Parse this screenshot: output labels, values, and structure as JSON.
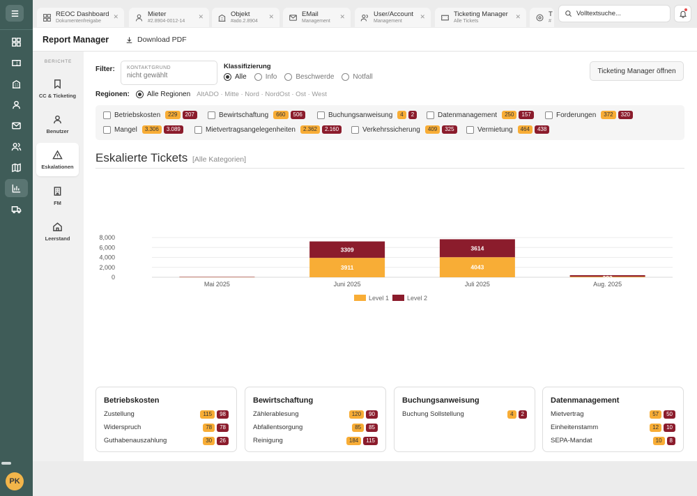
{
  "rail": {
    "avatar": "PK",
    "icons": [
      "menu-icon",
      "dashboard-icon",
      "ticket-icon",
      "building-icon",
      "user-icon",
      "mail-icon",
      "users-icon",
      "map-icon",
      "chart-icon",
      "truck-icon"
    ]
  },
  "tabs": [
    {
      "title": "REOC Dashboard",
      "subtitle": "Dokumentenfreigabe",
      "icon": "dashboard-icon"
    },
    {
      "title": "Mieter",
      "subtitle": "#2.8904-0012-14",
      "icon": "user-icon"
    },
    {
      "title": "Objekt",
      "subtitle": "#ado.2.8904",
      "icon": "building-icon"
    },
    {
      "title": "EMail",
      "subtitle": "Management",
      "icon": "mail-icon"
    },
    {
      "title": "User/Account",
      "subtitle": "Management",
      "icon": "users-icon"
    },
    {
      "title": "Ticketing Manager",
      "subtitle": "Alle Tickets",
      "icon": "ticket-icon"
    },
    {
      "title": "T",
      "subtitle": "#",
      "icon": "settings-icon"
    }
  ],
  "search": {
    "placeholder": "Volltextsuche..."
  },
  "header": {
    "title": "Report Manager",
    "pdf_label": "Download PDF"
  },
  "subnav": {
    "caption": "BERICHTE",
    "items": [
      {
        "label": "CC & Ticketing",
        "icon": "bookmark-icon"
      },
      {
        "label": "Benutzer",
        "icon": "user-icon"
      },
      {
        "label": "Eskalationen",
        "icon": "warning-icon"
      },
      {
        "label": "FM",
        "icon": "building-icon"
      },
      {
        "label": "Leerstand",
        "icon": "home-icon"
      }
    ]
  },
  "filter": {
    "label": "Filter:",
    "field_label": "KONTAKTGRUND",
    "field_value": "nicht gewählt",
    "klass_label": "Klassifizierung",
    "klass_options": [
      "Alle",
      "Info",
      "Beschwerde",
      "Notfall"
    ],
    "button": "Ticketing Manager öffnen",
    "regions_label": "Regionen:",
    "regions_selected": "Alle Regionen",
    "regions_other": "AltADO · Mitte · Nord · NordOst · Ost · West"
  },
  "categories": [
    {
      "name": "Betriebskosten",
      "l1": "229",
      "l2": "207"
    },
    {
      "name": "Bewirtschaftung",
      "l1": "660",
      "l2": "506"
    },
    {
      "name": "Buchungsanweisung",
      "l1": "4",
      "l2": "2"
    },
    {
      "name": "Datenmanagement",
      "l1": "250",
      "l2": "157"
    },
    {
      "name": "Forderungen",
      "l1": "372",
      "l2": "320"
    },
    {
      "name": "Mangel",
      "l1": "3.306",
      "l2": "3.089"
    },
    {
      "name": "Mietvertragsangelegenheiten",
      "l1": "2.362",
      "l2": "2.160"
    },
    {
      "name": "Verkehrssicherung",
      "l1": "409",
      "l2": "325"
    },
    {
      "name": "Vermietung",
      "l1": "464",
      "l2": "438"
    }
  ],
  "section": {
    "title": "Eskalierte Tickets",
    "subtitle": "[Alle Kategorien]"
  },
  "colors": {
    "level1": "#f8ad36",
    "level2": "#8b1c2c"
  },
  "chart_data": {
    "type": "bar",
    "stacked": true,
    "categories": [
      "Mai 2025",
      "Juni 2025",
      "Juli 2025",
      "Aug. 2025"
    ],
    "series": [
      {
        "name": "Level 1",
        "values": [
          50,
          3911,
          4043,
          130
        ]
      },
      {
        "name": "Level 2",
        "values": [
          30,
          3309,
          3614,
          282
        ]
      }
    ],
    "data_labels": [
      [
        "",
        "3911",
        "4043",
        ""
      ],
      [
        "",
        "3309",
        "3614",
        "282"
      ]
    ],
    "yticks": [
      "0",
      "2,000",
      "4,000",
      "6,000",
      "8,000"
    ],
    "ylim": [
      0,
      8000
    ],
    "grid": true,
    "legend": "bottom"
  },
  "cards": [
    {
      "title": "Betriebskosten",
      "rows": [
        {
          "label": "Zustellung",
          "l1": "115",
          "l2": "98"
        },
        {
          "label": "Widerspruch",
          "l1": "78",
          "l2": "78"
        },
        {
          "label": "Guthabenauszahlung",
          "l1": "30",
          "l2": "26"
        }
      ]
    },
    {
      "title": "Bewirtschaftung",
      "rows": [
        {
          "label": "Zählerablesung",
          "l1": "120",
          "l2": "90"
        },
        {
          "label": "Abfallentsorgung",
          "l1": "85",
          "l2": "85"
        },
        {
          "label": "Reinigung",
          "l1": "184",
          "l2": "115"
        }
      ]
    },
    {
      "title": "Buchungsanweisung",
      "rows": [
        {
          "label": "Buchung Sollstellung",
          "l1": "4",
          "l2": "2"
        }
      ]
    },
    {
      "title": "Datenmanagement",
      "rows": [
        {
          "label": "Mietvertrag",
          "l1": "57",
          "l2": "50"
        },
        {
          "label": "Einheitenstamm",
          "l1": "12",
          "l2": "10"
        },
        {
          "label": "SEPA-Mandat",
          "l1": "10",
          "l2": "8"
        }
      ]
    }
  ]
}
